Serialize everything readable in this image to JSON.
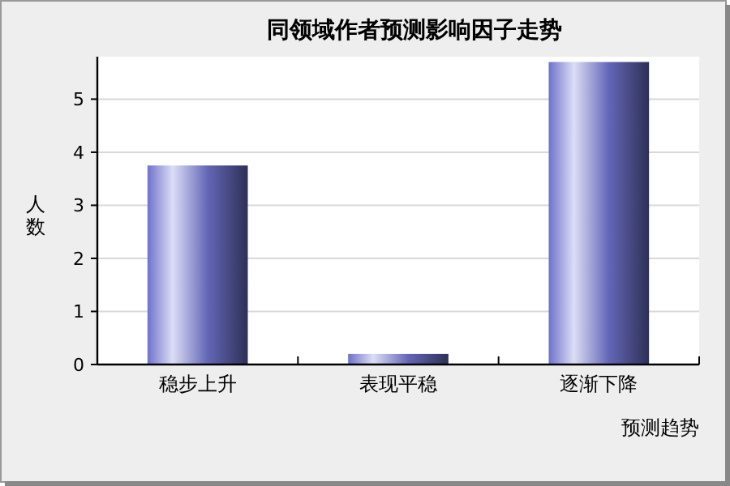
{
  "chart_data": {
    "type": "bar",
    "title": "同领域作者预测影响因子走势",
    "xlabel": "预测趋势",
    "ylabel": "人数",
    "categories": [
      "稳步上升",
      "表现平稳",
      "逐渐下降"
    ],
    "values": [
      3.75,
      0.2,
      5.7
    ],
    "color": "#7478d6",
    "ylim": [
      0,
      5.8
    ],
    "yticks": [
      0,
      1,
      2,
      3,
      4,
      5
    ],
    "grid": "y"
  }
}
